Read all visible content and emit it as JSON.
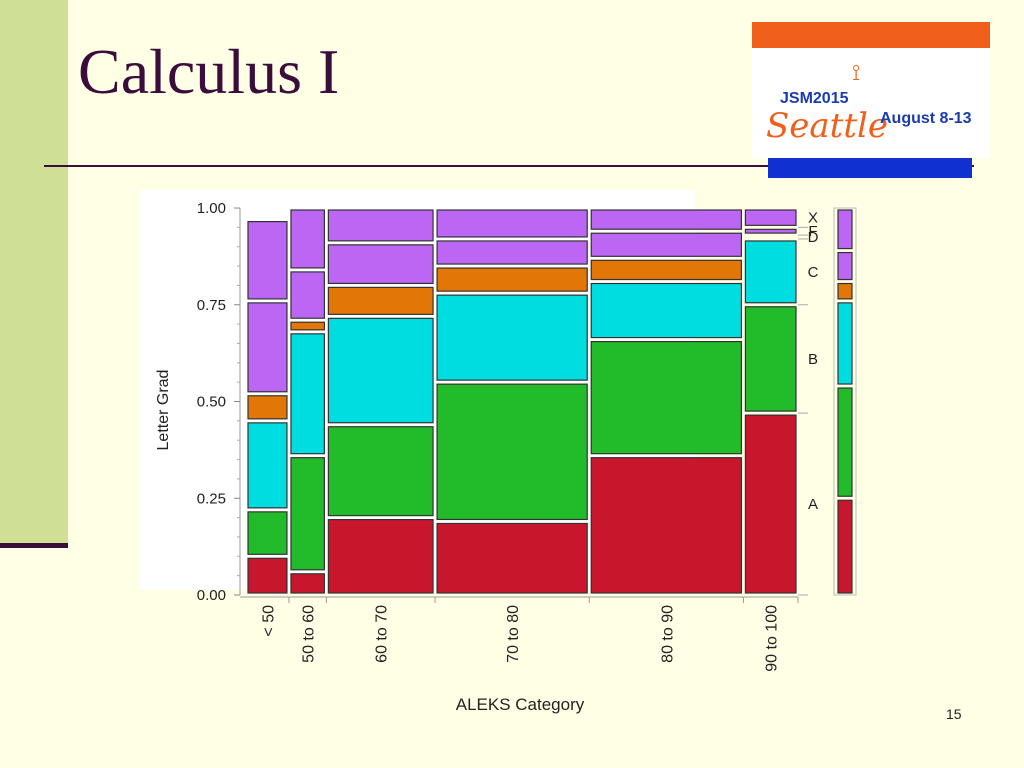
{
  "slide": {
    "title": "Calculus I",
    "page_number": "15"
  },
  "logo": {
    "event": "JSM2015",
    "city": "Seattle",
    "dates": "August 8-13"
  },
  "colors": {
    "A": "#c8172c",
    "B": "#22bb2a",
    "C": "#00dde0",
    "D": "#e27708",
    "F": "#bc66f4",
    "X": "#bc66f4"
  },
  "chart_data": {
    "type": "mosaic",
    "xlabel": "ALEKS Category",
    "ylabel": "Letter Grad",
    "y_ticks": [
      "0.00",
      "0.25",
      "0.50",
      "0.75",
      "1.00"
    ],
    "ylim": [
      0,
      1
    ],
    "grades": [
      "A",
      "B",
      "C",
      "D",
      "F",
      "X"
    ],
    "categories": [
      {
        "label": "< 50",
        "width": 0.085,
        "proportions": [
          0.1,
          0.12,
          0.23,
          0.07,
          0.24,
          0.21
        ]
      },
      {
        "label": "50 to 60",
        "width": 0.074,
        "proportions": [
          0.06,
          0.3,
          0.32,
          0.03,
          0.13,
          0.16
        ]
      },
      {
        "label": "60 to 70",
        "width": 0.215,
        "proportions": [
          0.2,
          0.24,
          0.28,
          0.08,
          0.11,
          0.09
        ]
      },
      {
        "label": "70 to 80",
        "width": 0.305,
        "proportions": [
          0.19,
          0.36,
          0.23,
          0.07,
          0.07,
          0.08
        ]
      },
      {
        "label": "80 to 90",
        "width": 0.305,
        "proportions": [
          0.36,
          0.3,
          0.15,
          0.06,
          0.07,
          0.06
        ]
      },
      {
        "label": "90 to 100",
        "width": 0.108,
        "proportions": [
          0.47,
          0.28,
          0.17,
          0.01,
          0.02,
          0.05
        ]
      }
    ],
    "overall": [
      0.25,
      0.29,
      0.22,
      0.05,
      0.08,
      0.11
    ],
    "legend_placement": "right"
  }
}
